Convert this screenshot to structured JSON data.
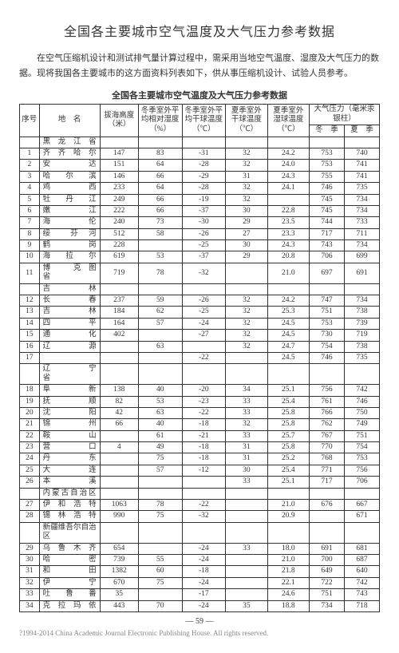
{
  "title": "全国各主要城市空气温度及大气压力参考数据",
  "intro": "在空气压缩机设计和测试排气量计算过程中，需采用当地空气温度、湿度及大气压力的数据。现将我国各主要城市的这方面资料列表如下，供从事压缩机设计、试验人员参考。",
  "table_title": "全国各主要城市空气温度及大气压力参考数据",
  "headers": {
    "seq": "序号",
    "place": "地　名",
    "alt": "拔海高度（米）",
    "winter_rh": "冬季室外平均相对湿度（%）",
    "winter_dry": "冬季室外平均干球温度（℃）",
    "summer_dry": "夏季室外干球温度（℃）",
    "summer_wet": "夏季室外湿球温度（℃）",
    "press": "大气压力（毫米汞银柱）",
    "press_w": "冬　季",
    "press_s": "夏　季"
  },
  "regions": [
    {
      "name": "黑 龙 江 省",
      "rows": [
        {
          "n": "1",
          "p": "齐 齐 哈 尔",
          "a": "147",
          "b": "83",
          "c": "-31",
          "d": "32",
          "e": "24.2",
          "f": "753",
          "g": "740"
        },
        {
          "n": "2",
          "p": "安　　　达",
          "a": "151",
          "b": "64",
          "c": "-28",
          "d": "32",
          "e": "24.0",
          "f": "753",
          "g": "741"
        },
        {
          "n": "3",
          "p": "哈　尔　滨",
          "a": "146",
          "b": "66",
          "c": "-29",
          "d": "31",
          "e": "24.3",
          "f": "755",
          "g": "741"
        },
        {
          "n": "4",
          "p": "鸡　　　西",
          "a": "233",
          "b": "64",
          "c": "-28",
          "d": "32",
          "e": "24.1",
          "f": "746",
          "g": "735"
        },
        {
          "n": "5",
          "p": "牡　丹　江",
          "a": "249",
          "b": "66",
          "c": "-19",
          "d": "32",
          "e": "",
          "f": "745",
          "g": "734"
        },
        {
          "n": "6",
          "p": "嫩　　　江",
          "a": "222",
          "b": "66",
          "c": "-37",
          "d": "30",
          "e": "22.8",
          "f": "745",
          "g": "734"
        },
        {
          "n": "7",
          "p": "海　　　伦",
          "a": "240",
          "b": "73",
          "c": "-30",
          "d": "29",
          "e": "23.5",
          "f": "744",
          "g": "733"
        },
        {
          "n": "8",
          "p": "绥　　芬　河",
          "a": "512",
          "b": "58",
          "c": "-26",
          "d": "27",
          "e": "23.3",
          "f": "717",
          "g": "711"
        },
        {
          "n": "9",
          "p": "鹤　　　岗",
          "a": "228",
          "b": "",
          "c": "-25",
          "d": "30",
          "e": "24.3",
          "f": "743",
          "g": "734"
        },
        {
          "n": "10",
          "p": "海　拉　尔",
          "a": "619",
          "b": "53",
          "c": "-37",
          "d": "29",
          "e": "20.8",
          "f": "706",
          "g": "699"
        },
        {
          "n": "11",
          "p": "博　　　克　图　省",
          "a": "719",
          "b": "78",
          "c": "-32",
          "d": "",
          "e": "21.0",
          "f": "697",
          "g": "691"
        }
      ]
    },
    {
      "name": "吉　　　林",
      "rows": [
        {
          "n": "12",
          "p": "长　　　春",
          "a": "237",
          "b": "59",
          "c": "-26",
          "d": "32",
          "e": "24.2",
          "f": "747",
          "g": "734"
        },
        {
          "n": "13",
          "p": "吉　　　林",
          "a": "184",
          "b": "62",
          "c": "-25",
          "d": "32",
          "e": "25.3",
          "f": "751",
          "g": "738"
        },
        {
          "n": "14",
          "p": "四　　　平",
          "a": "164",
          "b": "57",
          "c": "-24",
          "d": "32",
          "e": "24.5",
          "f": "753",
          "g": "739"
        },
        {
          "n": "15",
          "p": "通　　　化",
          "a": "402",
          "b": "",
          "c": "-27",
          "d": "32",
          "e": "24.5",
          "f": "730",
          "g": "719"
        },
        {
          "n": "16",
          "p": "辽　　　源",
          "a": "",
          "b": "63",
          "c": "",
          "d": "32",
          "e": "24.7",
          "f": "754",
          "g": "738"
        },
        {
          "n": "17",
          "p": "",
          "a": "",
          "b": "",
          "c": "-22",
          "d": "",
          "e": "24.5",
          "f": "746",
          "g": "735"
        }
      ]
    },
    {
      "name": "辽　　　宁　　省",
      "rows": [
        {
          "n": "18",
          "p": "阜　　　新",
          "a": "138",
          "b": "40",
          "c": "-20",
          "d": "34",
          "e": "25.1",
          "f": "756",
          "g": "742"
        },
        {
          "n": "19",
          "p": "抚　　　顺",
          "a": "82",
          "b": "53",
          "c": "-23",
          "d": "33",
          "e": "25.4",
          "f": "761",
          "g": "746"
        },
        {
          "n": "20",
          "p": "沈　　　阳",
          "a": "42",
          "b": "63",
          "c": "-22",
          "d": "33",
          "e": "25.8",
          "f": "766",
          "g": "750"
        },
        {
          "n": "21",
          "p": "锦　　　州",
          "a": "66",
          "b": "40",
          "c": "-18",
          "d": "32",
          "e": "25.8",
          "f": "762",
          "g": "749"
        },
        {
          "n": "22",
          "p": "鞍　　　山",
          "a": "",
          "b": "61",
          "c": "-21",
          "d": "33",
          "e": "25.7",
          "f": "767",
          "g": "751"
        },
        {
          "n": "23",
          "p": "营　　　口",
          "a": "4",
          "b": "49",
          "c": "-18",
          "d": "31",
          "e": "25.8",
          "f": "770",
          "g": "754"
        },
        {
          "n": "24",
          "p": "丹　　　东",
          "a": "",
          "b": "75",
          "c": "-18",
          "d": "31",
          "e": "25.2",
          "f": "768",
          "g": "753"
        },
        {
          "n": "25",
          "p": "大　　　连",
          "a": "",
          "b": "57",
          "c": "-12",
          "d": "30",
          "e": "25.4",
          "f": "771",
          "g": "756"
        },
        {
          "n": "26",
          "p": "本　　　溪",
          "a": "",
          "b": "",
          "c": "",
          "d": "33",
          "e": "25.1",
          "f": "717",
          "g": "706"
        }
      ]
    },
    {
      "name": "内蒙古自治区",
      "rows": [
        {
          "n": "27",
          "p": "伊 和 浩 特",
          "a": "1063",
          "b": "78",
          "c": "-22",
          "d": "",
          "e": "21.0",
          "f": "676",
          "g": "667"
        },
        {
          "n": "28",
          "p": "锡 林 浩 特",
          "a": "990",
          "b": "75",
          "c": "-32",
          "d": "",
          "e": "20.9",
          "f": "",
          "g": "671"
        }
      ]
    },
    {
      "name": "新疆维吾尔自治区",
      "rows": [
        {
          "n": "29",
          "p": "乌 鲁 木 齐",
          "a": "654",
          "b": "",
          "c": "-24",
          "d": "33",
          "e": "18.0",
          "f": "691",
          "g": "681"
        },
        {
          "n": "30",
          "p": "哈　　　密",
          "a": "739",
          "b": "55",
          "c": "-24",
          "d": "",
          "e": "21.0",
          "f": "700",
          "g": "687"
        },
        {
          "n": "31",
          "p": "和　　　田",
          "a": "1382",
          "b": "60",
          "c": "-18",
          "d": "",
          "e": "21.8",
          "f": "649",
          "g": "640"
        },
        {
          "n": "32",
          "p": "伊　　　宁",
          "a": "670",
          "b": "75",
          "c": "-24",
          "d": "",
          "e": "22.1",
          "f": "722",
          "g": "742"
        },
        {
          "n": "33",
          "p": "吐　鲁　番",
          "a": "35",
          "b": "",
          "c": "-17",
          "d": "",
          "e": "24.6",
          "f": "751",
          "g": "743"
        },
        {
          "n": "34",
          "p": "克 拉 玛 依",
          "a": "443",
          "b": "70",
          "c": "-24",
          "d": "35",
          "e": "18.8",
          "f": "734",
          "g": "718"
        }
      ]
    }
  ],
  "page_num": "— 59 —",
  "copyright": "?1994-2014 China Academic Journal Electronic Publishing House. All rights reserved."
}
